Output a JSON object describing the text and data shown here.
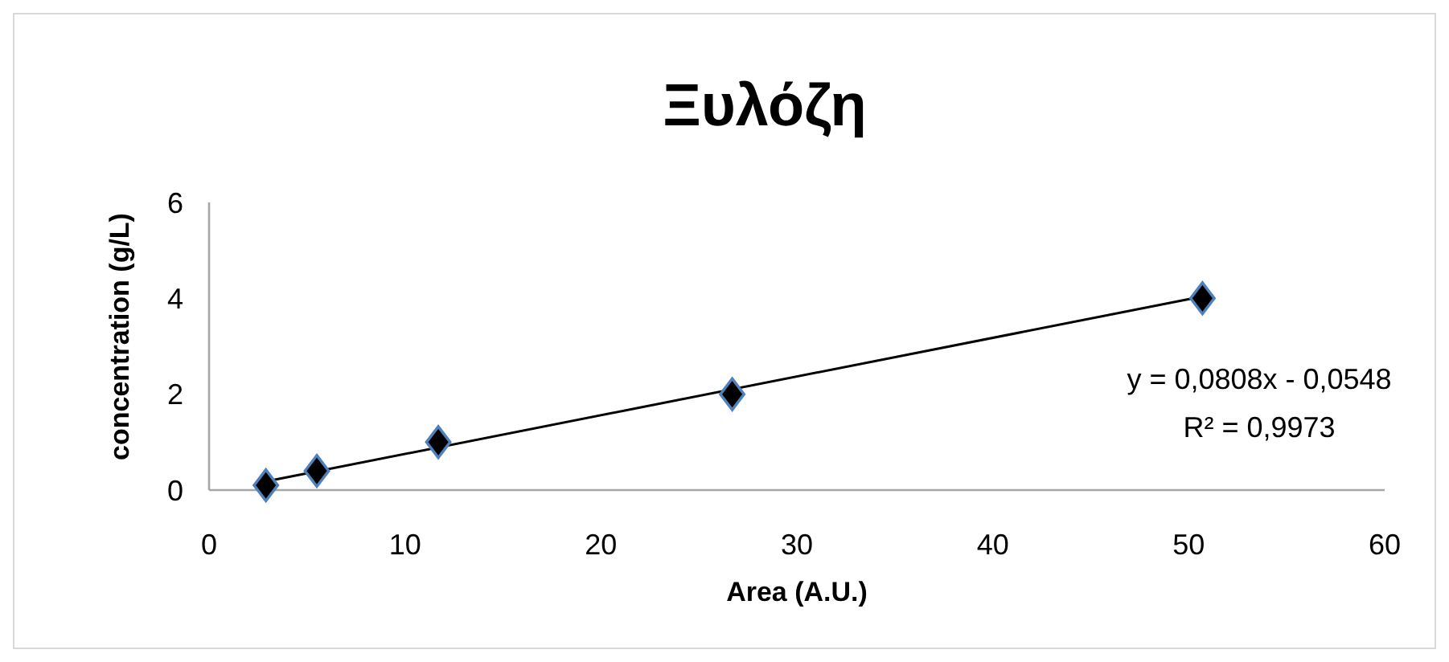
{
  "chart_data": {
    "type": "scatter",
    "title": "Ξυλόζη",
    "xlabel": "Area (A.U.)",
    "ylabel": "concentration (g/L)",
    "xlim": [
      0,
      60
    ],
    "xticks": [
      0,
      10,
      20,
      30,
      40,
      50,
      60
    ],
    "ylim": [
      0,
      6
    ],
    "yticks": [
      0,
      2,
      4,
      6
    ],
    "grid": false,
    "series": [
      {
        "color": "#000000",
        "marker": "diamond",
        "x": [
          2.9,
          5.5,
          11.7,
          26.7,
          50.7
        ],
        "values": [
          0.1,
          0.4,
          1.0,
          2.0,
          4.0
        ]
      },
      {
        "type": "line",
        "color": "#000000",
        "line_style": "solid",
        "x": [
          2.9,
          50.7
        ],
        "values": [
          0.18,
          4.04
        ]
      }
    ],
    "annotations": [
      "y = 0,0808x - 0,0548",
      "R² = 0,9973"
    ]
  }
}
